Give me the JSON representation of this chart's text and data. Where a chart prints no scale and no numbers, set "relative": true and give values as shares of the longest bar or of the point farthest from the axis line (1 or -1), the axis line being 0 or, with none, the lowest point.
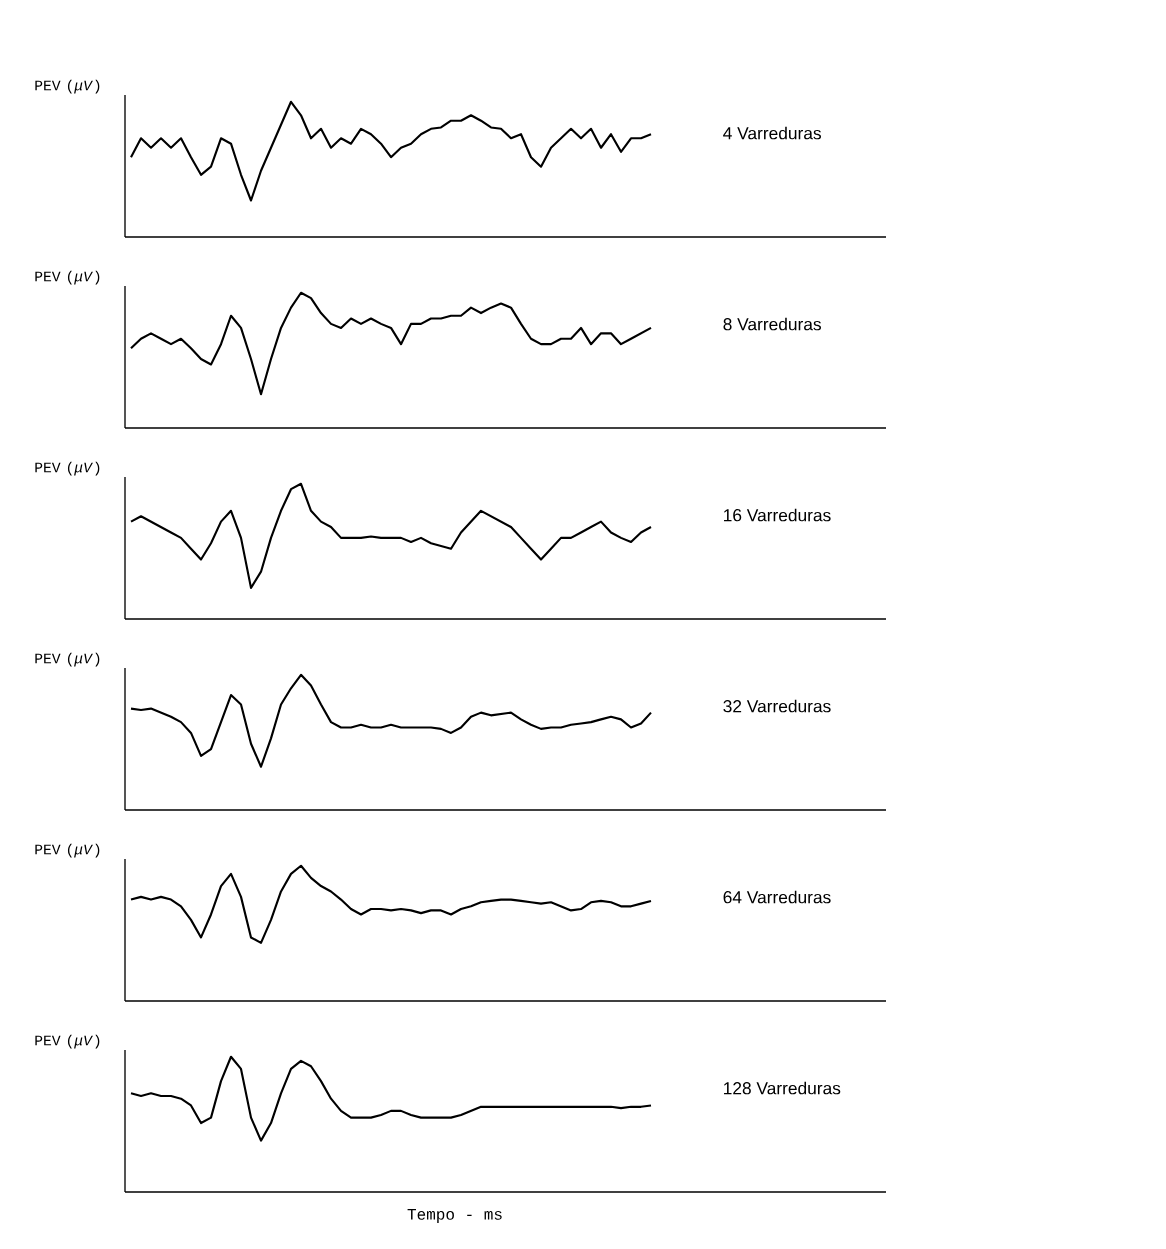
{
  "chart_data": [
    {
      "type": "line",
      "relative": true,
      "ylabel": "PEV (*μV*)",
      "annotations": [
        "4 Varreduras"
      ],
      "categories": [
        null,
        null,
        null,
        null,
        null,
        null,
        null,
        null,
        null,
        null,
        null,
        null,
        null,
        null,
        null,
        null,
        null,
        null,
        null,
        null,
        null,
        null,
        null,
        null,
        null,
        null,
        null,
        null,
        null,
        null,
        null,
        null,
        null,
        null,
        null,
        null,
        null,
        null,
        null,
        null,
        null,
        null,
        null,
        null,
        null,
        null,
        null,
        null,
        null,
        null,
        null,
        null,
        null
      ],
      "series": [
        {
          "color": "#000000",
          "values": [
            0.59,
            0.73,
            0.66,
            0.73,
            0.66,
            0.73,
            0.59,
            0.46,
            0.52,
            0.73,
            0.69,
            0.46,
            0.27,
            0.49,
            0.66,
            0.83,
            1.0,
            0.9,
            0.73,
            0.8,
            0.66,
            0.73,
            0.69,
            0.8,
            0.76,
            0.69,
            0.59,
            0.66,
            0.69,
            0.76,
            0.8,
            0.81,
            0.86,
            0.86,
            0.9,
            0.86,
            0.81,
            0.8,
            0.73,
            0.76,
            0.59,
            0.52,
            0.66,
            0.73,
            0.8,
            0.73,
            0.8,
            0.66,
            0.76,
            0.63,
            0.73,
            0.73,
            0.76
          ]
        }
      ]
    },
    {
      "type": "line",
      "relative": true,
      "ylabel": "PEV (*μV*)",
      "annotations": [
        "8 Varreduras"
      ],
      "categories": [
        null,
        null,
        null,
        null,
        null,
        null,
        null,
        null,
        null,
        null,
        null,
        null,
        null,
        null,
        null,
        null,
        null,
        null,
        null,
        null,
        null,
        null,
        null,
        null,
        null,
        null,
        null,
        null,
        null,
        null,
        null,
        null,
        null,
        null,
        null,
        null,
        null,
        null,
        null,
        null,
        null,
        null,
        null,
        null,
        null,
        null,
        null,
        null,
        null,
        null,
        null,
        null,
        null
      ],
      "series": [
        {
          "color": "#000000",
          "values": [
            0.59,
            0.66,
            0.7,
            0.66,
            0.62,
            0.66,
            0.59,
            0.51,
            0.47,
            0.62,
            0.83,
            0.74,
            0.51,
            0.25,
            0.51,
            0.74,
            0.89,
            1.0,
            0.96,
            0.85,
            0.77,
            0.74,
            0.81,
            0.77,
            0.81,
            0.77,
            0.74,
            0.62,
            0.77,
            0.77,
            0.81,
            0.81,
            0.83,
            0.83,
            0.89,
            0.85,
            0.89,
            0.92,
            0.89,
            0.77,
            0.66,
            0.62,
            0.62,
            0.66,
            0.66,
            0.74,
            0.62,
            0.7,
            0.7,
            0.62,
            0.66,
            0.7,
            0.74
          ]
        }
      ]
    },
    {
      "type": "line",
      "relative": true,
      "ylabel": "PEV (*μV*)",
      "annotations": [
        "16 Varreduras"
      ],
      "categories": [
        null,
        null,
        null,
        null,
        null,
        null,
        null,
        null,
        null,
        null,
        null,
        null,
        null,
        null,
        null,
        null,
        null,
        null,
        null,
        null,
        null,
        null,
        null,
        null,
        null,
        null,
        null,
        null,
        null,
        null,
        null,
        null,
        null,
        null,
        null,
        null,
        null,
        null,
        null,
        null,
        null,
        null,
        null,
        null,
        null,
        null,
        null,
        null,
        null,
        null,
        null,
        null,
        null
      ],
      "series": [
        {
          "color": "#000000",
          "values": [
            0.72,
            0.76,
            0.72,
            0.68,
            0.64,
            0.6,
            0.52,
            0.44,
            0.56,
            0.72,
            0.8,
            0.6,
            0.23,
            0.35,
            0.6,
            0.8,
            0.96,
            1.0,
            0.8,
            0.72,
            0.68,
            0.6,
            0.6,
            0.6,
            0.61,
            0.6,
            0.6,
            0.6,
            0.57,
            0.6,
            0.56,
            0.54,
            0.52,
            0.64,
            0.72,
            0.8,
            0.76,
            0.72,
            0.68,
            0.6,
            0.52,
            0.44,
            0.52,
            0.6,
            0.6,
            0.64,
            0.68,
            0.72,
            0.64,
            0.6,
            0.57,
            0.64,
            0.68
          ]
        }
      ]
    },
    {
      "type": "line",
      "relative": true,
      "ylabel": "PEV (*μV*)",
      "annotations": [
        "32 Varreduras"
      ],
      "categories": [
        null,
        null,
        null,
        null,
        null,
        null,
        null,
        null,
        null,
        null,
        null,
        null,
        null,
        null,
        null,
        null,
        null,
        null,
        null,
        null,
        null,
        null,
        null,
        null,
        null,
        null,
        null,
        null,
        null,
        null,
        null,
        null,
        null,
        null,
        null,
        null,
        null,
        null,
        null,
        null,
        null,
        null,
        null,
        null,
        null,
        null,
        null,
        null,
        null,
        null,
        null,
        null,
        null
      ],
      "series": [
        {
          "color": "#000000",
          "values": [
            0.75,
            0.74,
            0.75,
            0.72,
            0.69,
            0.65,
            0.57,
            0.4,
            0.45,
            0.65,
            0.85,
            0.78,
            0.49,
            0.32,
            0.53,
            0.78,
            0.9,
            1.0,
            0.92,
            0.78,
            0.65,
            0.61,
            0.61,
            0.63,
            0.61,
            0.61,
            0.63,
            0.61,
            0.61,
            0.61,
            0.61,
            0.6,
            0.57,
            0.61,
            0.69,
            0.72,
            0.7,
            0.71,
            0.72,
            0.67,
            0.63,
            0.6,
            0.61,
            0.61,
            0.63,
            0.64,
            0.65,
            0.67,
            0.69,
            0.67,
            0.61,
            0.64,
            0.72
          ]
        }
      ]
    },
    {
      "type": "line",
      "relative": true,
      "ylabel": "PEV (*μV*)",
      "annotations": [
        "64 Varreduras"
      ],
      "categories": [
        null,
        null,
        null,
        null,
        null,
        null,
        null,
        null,
        null,
        null,
        null,
        null,
        null,
        null,
        null,
        null,
        null,
        null,
        null,
        null,
        null,
        null,
        null,
        null,
        null,
        null,
        null,
        null,
        null,
        null,
        null,
        null,
        null,
        null,
        null,
        null,
        null,
        null,
        null,
        null,
        null,
        null,
        null,
        null,
        null,
        null,
        null,
        null,
        null,
        null,
        null,
        null,
        null
      ],
      "series": [
        {
          "color": "#000000",
          "values": [
            0.75,
            0.77,
            0.75,
            0.77,
            0.75,
            0.7,
            0.6,
            0.47,
            0.64,
            0.85,
            0.94,
            0.77,
            0.47,
            0.43,
            0.6,
            0.81,
            0.94,
            1.0,
            0.91,
            0.85,
            0.81,
            0.75,
            0.68,
            0.64,
            0.68,
            0.68,
            0.67,
            0.68,
            0.67,
            0.65,
            0.67,
            0.67,
            0.64,
            0.68,
            0.7,
            0.73,
            0.74,
            0.75,
            0.75,
            0.74,
            0.73,
            0.72,
            0.73,
            0.7,
            0.67,
            0.68,
            0.73,
            0.74,
            0.73,
            0.7,
            0.7,
            0.72,
            0.74
          ]
        }
      ]
    },
    {
      "type": "line",
      "relative": true,
      "ylabel": "PEV (*μV*)",
      "xlabel": "Tempo - ms",
      "annotations": [
        "128 Varreduras"
      ],
      "categories": [
        null,
        null,
        null,
        null,
        null,
        null,
        null,
        null,
        null,
        null,
        null,
        null,
        null,
        null,
        null,
        null,
        null,
        null,
        null,
        null,
        null,
        null,
        null,
        null,
        null,
        null,
        null,
        null,
        null,
        null,
        null,
        null,
        null,
        null,
        null,
        null,
        null,
        null,
        null,
        null,
        null,
        null,
        null,
        null,
        null,
        null,
        null,
        null,
        null,
        null,
        null,
        null,
        null
      ],
      "series": [
        {
          "color": "#000000",
          "values": [
            0.73,
            0.71,
            0.73,
            0.71,
            0.71,
            0.69,
            0.64,
            0.51,
            0.55,
            0.82,
            1.0,
            0.91,
            0.55,
            0.38,
            0.51,
            0.73,
            0.91,
            0.97,
            0.93,
            0.82,
            0.69,
            0.6,
            0.55,
            0.55,
            0.55,
            0.57,
            0.6,
            0.6,
            0.57,
            0.55,
            0.55,
            0.55,
            0.55,
            0.57,
            0.6,
            0.63,
            0.63,
            0.63,
            0.63,
            0.63,
            0.63,
            0.63,
            0.63,
            0.63,
            0.63,
            0.63,
            0.63,
            0.63,
            0.63,
            0.62,
            0.63,
            0.63,
            0.64
          ]
        }
      ]
    }
  ]
}
